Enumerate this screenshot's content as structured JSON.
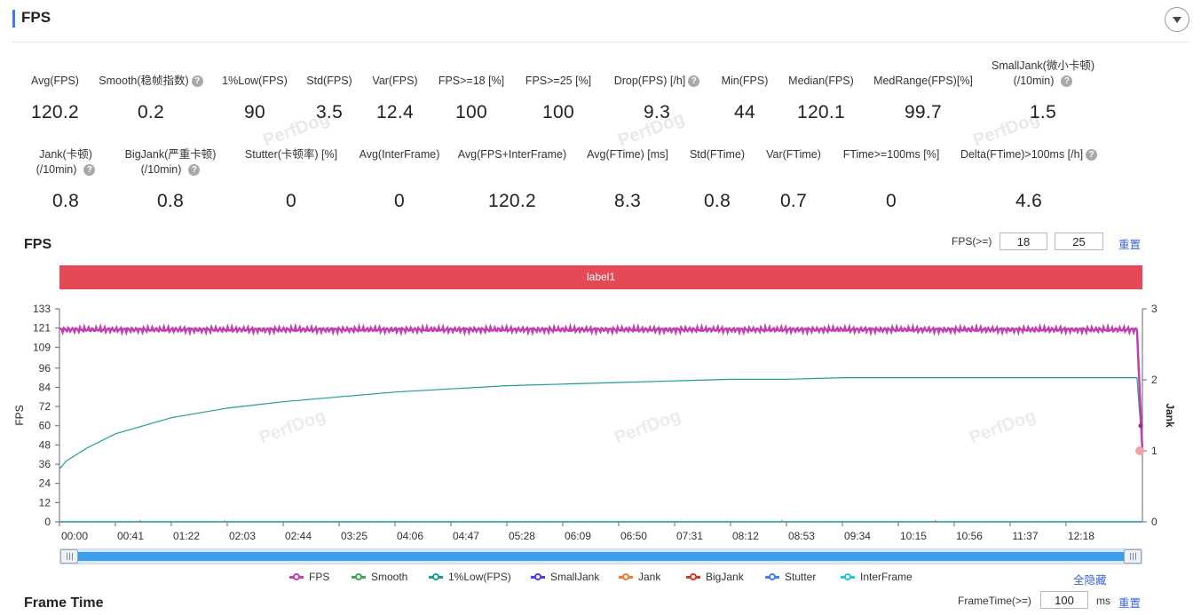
{
  "panel": {
    "title": "FPS"
  },
  "metrics_row1": [
    {
      "label": "Avg(FPS)",
      "value": "120.2",
      "help": false
    },
    {
      "label": "Smooth(稳帧指数)",
      "value": "0.2",
      "help": true
    },
    {
      "label": "1%Low(FPS)",
      "value": "90",
      "help": false
    },
    {
      "label": "Std(FPS)",
      "value": "3.5",
      "help": false
    },
    {
      "label": "Var(FPS)",
      "value": "12.4",
      "help": false
    },
    {
      "label": "FPS>=18 [%]",
      "value": "100",
      "help": false
    },
    {
      "label": "FPS>=25 [%]",
      "value": "100",
      "help": false
    },
    {
      "label": "Drop(FPS) [/h]",
      "value": "9.3",
      "help": true
    },
    {
      "label": "Min(FPS)",
      "value": "44",
      "help": false
    },
    {
      "label": "Median(FPS)",
      "value": "120.1",
      "help": false
    },
    {
      "label": "MedRange(FPS)[%]",
      "value": "99.7",
      "help": false
    },
    {
      "label": "SmallJank(微小卡顿)",
      "label2": "(/10min)",
      "value": "1.5",
      "help": true
    }
  ],
  "metrics_row2": [
    {
      "label": "Jank(卡顿)",
      "label2": "(/10min)",
      "value": "0.8",
      "help": true
    },
    {
      "label": "BigJank(严重卡顿)",
      "label2": "(/10min)",
      "value": "0.8",
      "help": true
    },
    {
      "label": "Stutter(卡顿率) [%]",
      "value": "0",
      "help": false
    },
    {
      "label": "Avg(InterFrame)",
      "value": "0",
      "help": false
    },
    {
      "label": "Avg(FPS+InterFrame)",
      "value": "120.2",
      "help": false
    },
    {
      "label": "Avg(FTime) [ms]",
      "value": "8.3",
      "help": false
    },
    {
      "label": "Std(FTime)",
      "value": "0.8",
      "help": false
    },
    {
      "label": "Var(FTime)",
      "value": "0.7",
      "help": false
    },
    {
      "label": "FTime>=100ms [%]",
      "value": "0",
      "help": false
    },
    {
      "label": "Delta(FTime)>100ms [/h]",
      "value": "4.6",
      "help": true
    }
  ],
  "watermark": "PerfDog",
  "fps_section": {
    "title": "FPS",
    "threshold_label": "FPS(>=)",
    "threshold1": "18",
    "threshold2": "25",
    "reset": "重置",
    "band_label": "label1"
  },
  "legend_toggle": "全隐藏",
  "frametime_section": {
    "title": "Frame Time",
    "threshold_label": "FrameTime(>=)",
    "threshold_value": "100",
    "unit": "ms",
    "reset": "重置"
  },
  "chart_data": {
    "type": "line",
    "xlabel": "",
    "ylabel": "FPS",
    "y2label": "Jank",
    "ylim": [
      0,
      133
    ],
    "y2lim": [
      0,
      3
    ],
    "yticks": [
      "0",
      "12",
      "24",
      "36",
      "48",
      "60",
      "72",
      "84",
      "96",
      "109",
      "121",
      "133"
    ],
    "y2ticks": [
      "0",
      "1",
      "2",
      "3"
    ],
    "x_ticks": [
      "00:00",
      "00:41",
      "01:22",
      "02:03",
      "02:44",
      "03:25",
      "04:06",
      "04:47",
      "05:28",
      "06:09",
      "06:50",
      "07:31",
      "08:12",
      "08:53",
      "09:34",
      "10:15",
      "10:56",
      "11:37",
      "12:18"
    ],
    "grid": false,
    "legend_position": "bottom",
    "x_range_seconds": [
      0,
      794
    ],
    "series": [
      {
        "name": "FPS",
        "color": "#c23fb0",
        "x": [
          0,
          41,
          82,
          123,
          164,
          205,
          246,
          287,
          328,
          369,
          410,
          451,
          492,
          533,
          574,
          615,
          656,
          697,
          738,
          780,
          790,
          794
        ],
        "values": [
          120,
          120,
          120,
          120,
          120,
          120,
          120,
          120,
          120,
          120,
          120,
          120,
          120,
          120,
          120,
          120,
          120,
          120,
          120,
          120,
          120,
          44
        ]
      },
      {
        "name": "Smooth",
        "color": "#3fa950",
        "x": [
          0,
          794
        ],
        "values": [
          0.2,
          0.2
        ]
      },
      {
        "name": "1%Low(FPS)",
        "color": "#1a9e94",
        "x": [
          0,
          5,
          20,
          41,
          82,
          123,
          164,
          205,
          246,
          287,
          328,
          369,
          410,
          451,
          492,
          533,
          574,
          615,
          656,
          697,
          738,
          780,
          790,
          794
        ],
        "values": [
          33,
          38,
          46,
          55,
          65,
          71,
          75,
          78,
          81,
          83,
          85,
          86,
          87,
          88,
          89,
          89,
          90,
          90,
          90,
          90,
          90,
          90,
          90,
          44
        ]
      },
      {
        "name": "SmallJank",
        "color": "#4a3fe0",
        "x": [
          0,
          794
        ],
        "values": [
          0,
          0
        ]
      },
      {
        "name": "Jank",
        "color": "#f07a30",
        "x": [
          0,
          794
        ],
        "values": [
          0,
          0
        ]
      },
      {
        "name": "BigJank",
        "color": "#d8352a",
        "x": [
          0,
          794
        ],
        "values": [
          0,
          0
        ]
      },
      {
        "name": "Stutter",
        "color": "#3d82e8",
        "x": [
          0,
          794
        ],
        "values": [
          0,
          0
        ]
      },
      {
        "name": "InterFrame",
        "color": "#27c4d8",
        "x": [
          0,
          794
        ],
        "values": [
          0,
          0
        ]
      }
    ]
  }
}
